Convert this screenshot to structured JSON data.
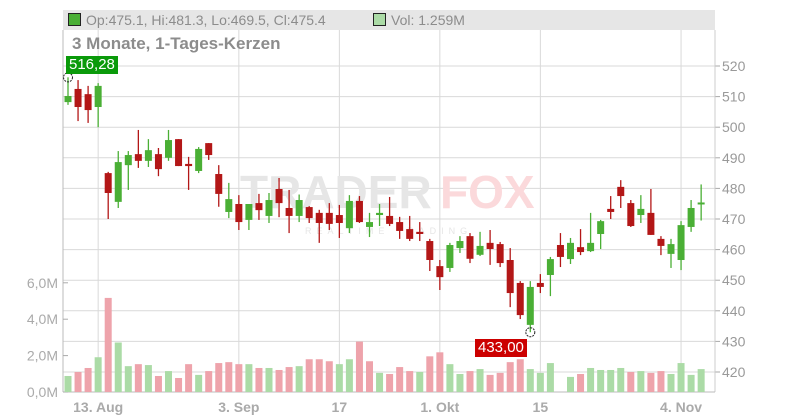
{
  "header": {
    "ohlc_text": "Op:475.1, Hi:481.3, Lo:469.5, Cl:475.4",
    "vol_text": "Vol: 1.259M",
    "subtitle": "3 Monate, 1-Tages-Kerzen"
  },
  "watermark": {
    "brand_a": "TRADER",
    "brand_b": "FOX",
    "tagline": "REALTIME TRADING"
  },
  "markers": {
    "high_label": "516,28",
    "low_label": "433,00"
  },
  "colors": {
    "up": "#4aaf35",
    "down": "#b31717",
    "vol_up": "#abdba6",
    "vol_down": "#eea3ab",
    "high_tag": "#0a9a0a",
    "low_tag": "#cc0000",
    "grid": "#d9d9d9"
  },
  "chart_data": {
    "type": "candlestick",
    "title": "3 Monate, 1-Tages-Kerzen",
    "price_axis": {
      "position": "right",
      "ylim": [
        420,
        520
      ],
      "ticks": [
        "520",
        "510",
        "500",
        "490",
        "480",
        "470",
        "460",
        "450",
        "440",
        "430",
        "420"
      ]
    },
    "volume_axis": {
      "position": "left",
      "unit": "M",
      "ticks": [
        "0,0M",
        "2,0M",
        "4,0M",
        "6,0M"
      ],
      "tick_values": [
        0,
        2,
        4,
        6
      ]
    },
    "x_ticks": [
      {
        "label": "13. Aug",
        "index": 3
      },
      {
        "label": "3. Sep",
        "index": 17
      },
      {
        "label": "17",
        "index": 27
      },
      {
        "label": "1. Okt",
        "index": 37
      },
      {
        "label": "15",
        "index": 47
      },
      {
        "label": "4. Nov",
        "index": 61
      }
    ],
    "grid": true,
    "ohlc": [
      [
        508.2,
        516.3,
        507.3,
        510.2
      ],
      [
        512.5,
        515.4,
        502.0,
        506.6
      ],
      [
        510.8,
        513.5,
        501.4,
        505.6
      ],
      [
        506.6,
        514.4,
        500.0,
        513.5
      ],
      [
        485.0,
        485.4,
        470.0,
        478.5
      ],
      [
        475.6,
        492.2,
        473.6,
        488.6
      ],
      [
        487.6,
        492.2,
        479.5,
        490.9
      ],
      [
        491.2,
        499.1,
        486.7,
        489.0
      ],
      [
        489.0,
        496.1,
        487.0,
        492.5
      ],
      [
        491.2,
        493.2,
        484.0,
        486.3
      ],
      [
        490.0,
        499.1,
        489.0,
        495.8
      ],
      [
        496.1,
        496.1,
        487.3,
        487.3
      ],
      [
        488.0,
        490.3,
        479.5,
        487.3
      ],
      [
        485.7,
        493.5,
        485.0,
        492.9
      ],
      [
        494.8,
        494.8,
        489.3,
        490.9
      ],
      [
        484.7,
        487.6,
        474.0,
        478.2
      ],
      [
        472.3,
        481.8,
        470.3,
        476.5
      ],
      [
        474.9,
        477.8,
        466.4,
        469.0
      ],
      [
        469.7,
        474.9,
        466.4,
        474.9
      ],
      [
        475.2,
        478.2,
        469.7,
        472.9
      ],
      [
        471.0,
        478.5,
        468.7,
        476.2
      ],
      [
        479.8,
        483.4,
        470.6,
        475.2
      ],
      [
        473.6,
        479.5,
        465.4,
        471.0
      ],
      [
        471.0,
        478.0,
        469.0,
        476.2
      ],
      [
        473.9,
        474.2,
        468.7,
        470.3
      ],
      [
        472.0,
        473.0,
        462.2,
        468.7
      ],
      [
        472.0,
        475.2,
        466.4,
        468.4
      ],
      [
        471.3,
        474.6,
        463.8,
        468.7
      ],
      [
        467.0,
        477.8,
        465.4,
        475.9
      ],
      [
        475.9,
        477.5,
        468.7,
        469.0
      ],
      [
        467.4,
        472.0,
        464.1,
        469.0
      ],
      [
        471.3,
        474.9,
        467.7,
        472.0
      ],
      [
        471.0,
        477.2,
        467.7,
        468.4
      ],
      [
        469.0,
        470.7,
        463.5,
        466.1
      ],
      [
        466.7,
        471.0,
        462.8,
        463.5
      ],
      [
        465.8,
        469.0,
        462.8,
        465.1
      ],
      [
        462.8,
        463.5,
        453.0,
        456.6
      ],
      [
        454.6,
        456.6,
        446.8,
        451.0
      ],
      [
        454.0,
        462.2,
        452.7,
        461.5
      ],
      [
        460.5,
        464.4,
        458.9,
        462.8
      ],
      [
        464.4,
        465.4,
        455.6,
        457.0
      ],
      [
        458.3,
        465.8,
        457.9,
        461.2
      ],
      [
        462.2,
        466.4,
        455.0,
        460.2
      ],
      [
        461.8,
        462.5,
        454.3,
        455.6
      ],
      [
        456.6,
        460.5,
        441.2,
        445.8
      ],
      [
        449.1,
        449.7,
        437.3,
        438.6
      ],
      [
        435.4,
        449.7,
        433.0,
        447.8
      ],
      [
        449.1,
        452.0,
        445.8,
        447.8
      ],
      [
        451.7,
        457.6,
        444.8,
        456.9
      ],
      [
        461.5,
        465.4,
        454.3,
        457.6
      ],
      [
        456.9,
        463.8,
        455.3,
        462.2
      ],
      [
        460.8,
        466.7,
        458.2,
        459.2
      ],
      [
        459.5,
        472.0,
        459.2,
        462.2
      ],
      [
        465.1,
        469.7,
        460.2,
        469.3
      ],
      [
        473.3,
        477.5,
        470.0,
        472.3
      ],
      [
        480.5,
        482.7,
        473.6,
        477.5
      ],
      [
        475.2,
        476.2,
        467.4,
        467.7
      ],
      [
        471.3,
        477.8,
        468.7,
        473.3
      ],
      [
        472.0,
        479.8,
        464.8,
        464.8
      ],
      [
        463.5,
        464.4,
        458.2,
        461.2
      ],
      [
        458.6,
        463.5,
        454.0,
        461.8
      ],
      [
        456.6,
        469.3,
        453.3,
        468.0
      ],
      [
        467.4,
        476.2,
        465.8,
        473.6
      ],
      [
        475.1,
        481.3,
        469.5,
        475.4
      ]
    ],
    "volume_millions": [
      0.88,
      1.1,
      1.32,
      1.91,
      5.17,
      2.72,
      1.42,
      1.53,
      1.48,
      0.88,
      1.15,
      0.77,
      1.53,
      0.94,
      1.15,
      1.59,
      1.64,
      1.53,
      1.53,
      1.32,
      1.32,
      1.21,
      1.37,
      1.42,
      1.8,
      1.8,
      1.69,
      1.53,
      1.8,
      2.77,
      1.69,
      1.05,
      0.99,
      1.37,
      1.15,
      1.1,
      1.96,
      2.18,
      1.53,
      0.99,
      1.15,
      1.26,
      0.94,
      1.05,
      1.64,
      1.8,
      1.26,
      1.05,
      1.59,
      0,
      0.83,
      0.99,
      1.32,
      1.21,
      1.21,
      1.32,
      1.1,
      1.15,
      1.05,
      1.15,
      0.99,
      1.59,
      0.94,
      1.259
    ],
    "volume_up": [
      1,
      0,
      0,
      1,
      0,
      1,
      1,
      0,
      1,
      0,
      1,
      0,
      0,
      1,
      0,
      0,
      0,
      0,
      1,
      0,
      1,
      0,
      0,
      1,
      0,
      0,
      0,
      1,
      1,
      0,
      0,
      1,
      0,
      0,
      0,
      1,
      0,
      0,
      1,
      1,
      0,
      1,
      0,
      0,
      0,
      0,
      1,
      1,
      1,
      0,
      1,
      0,
      1,
      1,
      1,
      1,
      0,
      1,
      0,
      0,
      1,
      1,
      1,
      1
    ],
    "high_marker": {
      "value": 516.28,
      "index": 0
    },
    "low_marker": {
      "value": 433.0,
      "index": 46
    }
  }
}
